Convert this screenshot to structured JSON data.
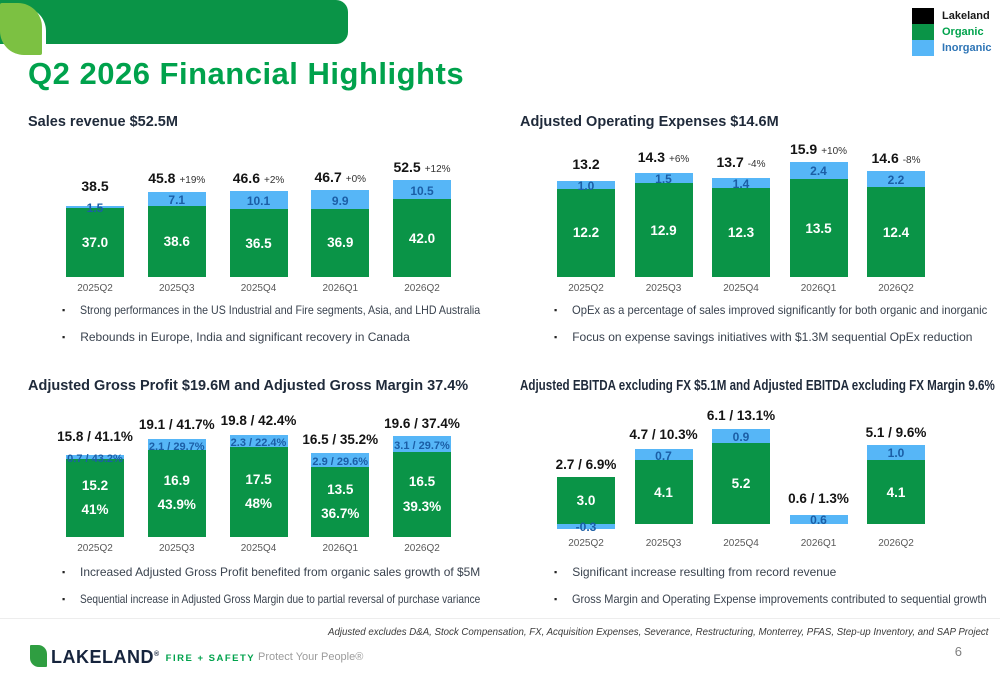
{
  "header": {
    "title": "Q2 2026 Financial Highlights"
  },
  "legend": {
    "items": [
      {
        "label": "Lakeland",
        "swatch": "#000000",
        "label_color": "#1a1a1a"
      },
      {
        "label": "Organic",
        "swatch": "#0A9447",
        "label_color": "#00A24C"
      },
      {
        "label": "Inorganic",
        "swatch": "#56B6F7",
        "label_color": "#2E75B6"
      }
    ]
  },
  "colors": {
    "organic_bar": "#0A9447",
    "inorganic_bar": "#56B6F7",
    "inorganic_label_text": "#1B5EA6",
    "title_green": "#00A24C",
    "panel_title_navy": "#1F2A3A"
  },
  "chart_data": [
    {
      "type": "bar",
      "title": "Sales revenue $52.5M",
      "categories": [
        "2025Q2",
        "2025Q3",
        "2025Q4",
        "2026Q1",
        "2026Q2"
      ],
      "series": [
        {
          "name": "Organic",
          "values": [
            37.0,
            38.6,
            36.5,
            36.9,
            42.0
          ]
        },
        {
          "name": "Inorganic",
          "values": [
            1.5,
            7.1,
            10.1,
            9.9,
            10.5
          ]
        }
      ],
      "total_values": [
        38.5,
        45.8,
        46.6,
        46.7,
        52.5
      ],
      "total_labels": [
        "38.5",
        "45.8",
        "46.6",
        "46.7",
        "52.5"
      ],
      "pct_labels": [
        "",
        "+19%",
        "+2%",
        "+0%",
        "+12%"
      ],
      "organic_labels": [
        "37.0",
        "38.6",
        "36.5",
        "36.9",
        "42.0"
      ],
      "inorganic_labels": [
        "1.5",
        "7.1",
        "10.1",
        "9.9",
        "10.5"
      ],
      "ylim": [
        0,
        54
      ],
      "legend_position": "top-right",
      "bullets": [
        "Strong performances in the US Industrial and Fire segments, Asia, and LHD Australia",
        "Rebounds in Europe, India and significant recovery in Canada"
      ]
    },
    {
      "type": "bar",
      "title": "Adjusted Operating Expenses $14.6M",
      "categories": [
        "2025Q2",
        "2025Q3",
        "2025Q4",
        "2026Q1",
        "2026Q2"
      ],
      "series": [
        {
          "name": "Organic",
          "values": [
            12.2,
            12.9,
            12.3,
            13.5,
            12.4
          ]
        },
        {
          "name": "Inorganic",
          "values": [
            1.0,
            1.5,
            1.4,
            2.4,
            2.2
          ]
        }
      ],
      "total_values": [
        13.2,
        14.3,
        13.7,
        15.9,
        14.6
      ],
      "total_labels": [
        "13.2",
        "14.3",
        "13.7",
        "15.9",
        "14.6"
      ],
      "pct_labels": [
        "",
        "+6%",
        "-4%",
        "+10%",
        "-8%"
      ],
      "organic_labels": [
        "12.2",
        "12.9",
        "12.3",
        "13.5",
        "12.4"
      ],
      "inorganic_labels": [
        "1.0",
        "1.5",
        "1.4",
        "2.4",
        "2.2"
      ],
      "ylim": [
        0,
        16
      ],
      "bullets": [
        "OpEx as a percentage of sales improved significantly for both organic and inorganic",
        "Focus on expense savings initiatives with $1.3M sequential OpEx reduction"
      ]
    },
    {
      "type": "bar",
      "title": "Adjusted Gross Profit $19.6M and Adjusted Gross Margin 37.4%",
      "categories": [
        "2025Q2",
        "2025Q3",
        "2025Q4",
        "2026Q1",
        "2026Q2"
      ],
      "series": [
        {
          "name": "Organic",
          "values": [
            15.2,
            16.9,
            17.5,
            13.5,
            16.5
          ]
        },
        {
          "name": "Inorganic",
          "values": [
            0.7,
            2.1,
            2.3,
            2.9,
            3.1
          ]
        }
      ],
      "total_values": [
        15.8,
        19.1,
        19.8,
        16.5,
        19.6
      ],
      "total_margins_pct": [
        41.1,
        41.7,
        42.4,
        35.2,
        37.4
      ],
      "total_labels": [
        "15.8 / 41.1%",
        "19.1 / 41.7%",
        "19.8 / 42.4%",
        "16.5 / 35.2%",
        "19.6 / 37.4%"
      ],
      "organic_labels": [
        [
          "15.2",
          "41%"
        ],
        [
          "16.9",
          "43.9%"
        ],
        [
          "17.5",
          "48%"
        ],
        [
          "13.5",
          "36.7%"
        ],
        [
          "16.5",
          "39.3%"
        ]
      ],
      "inorganic_labels": [
        "0.7 / 43.2%",
        "2.1 / 29.7%",
        "2.3 / 22.4%",
        "2.9 / 29.6%",
        "3.1 / 29.7%"
      ],
      "ylim": [
        0,
        20
      ],
      "bullets": [
        "Increased Adjusted Gross Profit benefited from organic sales growth of $5M",
        "Sequential increase in Adjusted Gross Margin due to partial reversal of purchase variance"
      ]
    },
    {
      "type": "bar",
      "title": "Adjusted EBITDA excluding FX $5.1M and Adjusted EBITDA excluding FX Margin 9.6%",
      "categories": [
        "2025Q2",
        "2025Q3",
        "2025Q4",
        "2026Q1",
        "2026Q2"
      ],
      "series": [
        {
          "name": "Organic",
          "values": [
            3.0,
            4.1,
            5.2,
            0,
            4.1
          ]
        },
        {
          "name": "Inorganic",
          "values": [
            -0.3,
            0.7,
            0.9,
            0.6,
            1.0
          ]
        }
      ],
      "total_values": [
        2.7,
        4.7,
        6.1,
        0.6,
        5.1
      ],
      "total_margins_pct": [
        6.9,
        10.3,
        13.1,
        1.3,
        9.6
      ],
      "total_labels": [
        "2.7 / 6.9%",
        "4.7 / 10.3%",
        "6.1 / 13.1%",
        "0.6 / 1.3%",
        "5.1 / 9.6%"
      ],
      "organic_labels": [
        "3.0",
        "4.1",
        "5.2",
        "",
        "4.1"
      ],
      "inorganic_labels": [
        "-0.3",
        "0.7",
        "0.9",
        "0.6",
        "1.0"
      ],
      "ylim": [
        -0.5,
        6.3
      ],
      "bullets": [
        "Significant increase resulting from record revenue",
        "Gross Margin and Operating Expense improvements contributed to sequential growth"
      ]
    }
  ],
  "footer": {
    "footnote": "Adjusted excludes D&A, Stock Compensation, FX, Acquisition Expenses, Severance, Restructuring, Monterrey, PFAS, Step-up Inventory, and SAP Project",
    "brand": "LAKELAND",
    "brand_reg": "®",
    "brand_sub": "FIRE + SAFETY",
    "tagline": "Protect Your People®",
    "page_number": "6"
  }
}
